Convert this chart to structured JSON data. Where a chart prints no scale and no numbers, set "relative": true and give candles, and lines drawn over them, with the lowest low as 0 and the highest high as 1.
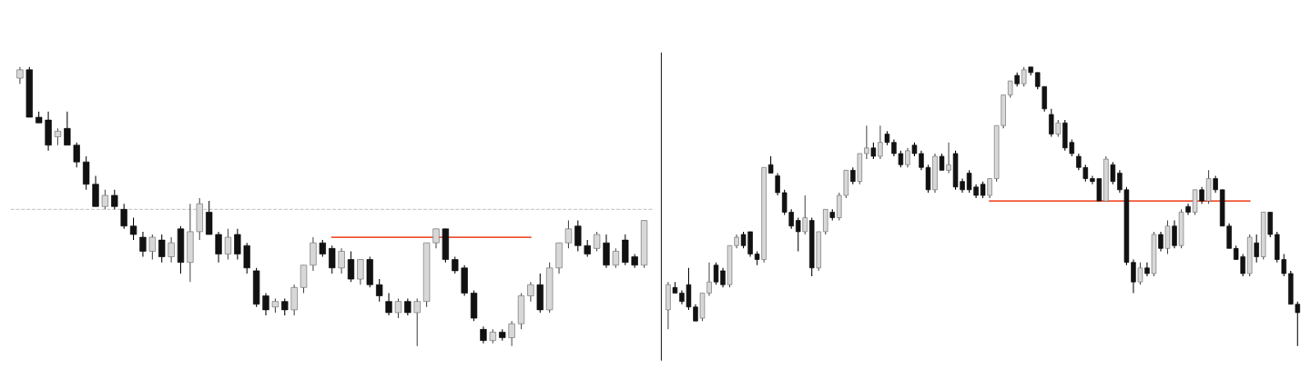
{
  "chart_data": [
    {
      "type": "candlestick",
      "relative": true,
      "tick_labels": false,
      "categories": [
        null,
        null,
        null,
        null,
        null,
        null,
        null,
        null,
        null,
        null,
        null,
        null,
        null,
        null,
        null,
        null,
        null,
        null,
        null,
        null,
        null,
        null,
        null,
        null,
        null,
        null,
        null,
        null,
        null,
        null,
        null,
        null,
        null,
        null,
        null,
        null,
        null,
        null,
        null,
        null,
        null,
        null,
        null,
        null,
        null,
        null,
        null,
        null,
        null,
        null,
        null,
        null,
        null,
        null,
        null,
        null,
        null,
        null,
        null,
        null,
        null,
        null,
        null,
        null,
        null,
        null,
        null
      ],
      "ohlc": [
        [
          0.96,
          1.0,
          0.94,
          0.99
        ],
        [
          0.99,
          1.0,
          0.82,
          0.82
        ],
        [
          0.82,
          0.84,
          0.8,
          0.8
        ],
        [
          0.81,
          0.84,
          0.7,
          0.72
        ],
        [
          0.75,
          0.78,
          0.72,
          0.77
        ],
        [
          0.78,
          0.84,
          0.72,
          0.72
        ],
        [
          0.72,
          0.73,
          0.64,
          0.66
        ],
        [
          0.66,
          0.68,
          0.56,
          0.58
        ],
        [
          0.58,
          0.61,
          0.5,
          0.5
        ],
        [
          0.5,
          0.56,
          0.49,
          0.54
        ],
        [
          0.54,
          0.56,
          0.49,
          0.5
        ],
        [
          0.49,
          0.51,
          0.42,
          0.43
        ],
        [
          0.43,
          0.46,
          0.38,
          0.4
        ],
        [
          0.39,
          0.41,
          0.32,
          0.34
        ],
        [
          0.34,
          0.4,
          0.31,
          0.39
        ],
        [
          0.38,
          0.4,
          0.3,
          0.32
        ],
        [
          0.32,
          0.39,
          0.3,
          0.37
        ],
        [
          0.42,
          0.43,
          0.26,
          0.3
        ],
        [
          0.3,
          0.51,
          0.23,
          0.41
        ],
        [
          0.41,
          0.53,
          0.38,
          0.51
        ],
        [
          0.48,
          0.52,
          0.4,
          0.4
        ],
        [
          0.4,
          0.41,
          0.3,
          0.33
        ],
        [
          0.33,
          0.42,
          0.31,
          0.39
        ],
        [
          0.4,
          0.42,
          0.31,
          0.33
        ],
        [
          0.36,
          0.37,
          0.26,
          0.28
        ],
        [
          0.27,
          0.28,
          0.14,
          0.15
        ],
        [
          0.18,
          0.19,
          0.11,
          0.13
        ],
        [
          0.14,
          0.17,
          0.12,
          0.16
        ],
        [
          0.16,
          0.17,
          0.11,
          0.13
        ],
        [
          0.13,
          0.22,
          0.11,
          0.21
        ],
        [
          0.21,
          0.29,
          0.19,
          0.29
        ],
        [
          0.29,
          0.39,
          0.27,
          0.37
        ],
        [
          0.37,
          0.38,
          0.32,
          0.33
        ],
        [
          0.35,
          0.36,
          0.26,
          0.28
        ],
        [
          0.28,
          0.35,
          0.26,
          0.34
        ],
        [
          0.31,
          0.34,
          0.23,
          0.24
        ],
        [
          0.24,
          0.31,
          0.22,
          0.31
        ],
        [
          0.31,
          0.32,
          0.21,
          0.22
        ],
        [
          0.22,
          0.24,
          0.16,
          0.18
        ],
        [
          0.16,
          0.19,
          0.11,
          0.12
        ],
        [
          0.12,
          0.17,
          0.1,
          0.16
        ],
        [
          0.16,
          0.17,
          0.11,
          0.12
        ],
        [
          0.12,
          0.17,
          0.0,
          0.16
        ],
        [
          0.16,
          0.37,
          0.14,
          0.37
        ],
        [
          0.37,
          0.42,
          0.35,
          0.42
        ],
        [
          0.42,
          0.42,
          0.3,
          0.31
        ],
        [
          0.31,
          0.32,
          0.26,
          0.27
        ],
        [
          0.28,
          0.29,
          0.18,
          0.19
        ],
        [
          0.19,
          0.2,
          0.09,
          0.1
        ],
        [
          0.06,
          0.07,
          0.01,
          0.02
        ],
        [
          0.02,
          0.06,
          0.01,
          0.05
        ],
        [
          0.05,
          0.06,
          0.02,
          0.03
        ],
        [
          0.03,
          0.09,
          0.0,
          0.08
        ],
        [
          0.08,
          0.19,
          0.06,
          0.18
        ],
        [
          0.18,
          0.23,
          0.16,
          0.22
        ],
        [
          0.22,
          0.26,
          0.12,
          0.13
        ],
        [
          0.13,
          0.3,
          0.12,
          0.28
        ],
        [
          0.28,
          0.37,
          0.26,
          0.37
        ],
        [
          0.37,
          0.45,
          0.35,
          0.42
        ],
        [
          0.43,
          0.45,
          0.34,
          0.36
        ],
        [
          0.36,
          0.38,
          0.32,
          0.33
        ],
        [
          0.35,
          0.41,
          0.34,
          0.4
        ],
        [
          0.37,
          0.4,
          0.28,
          0.29
        ],
        [
          0.29,
          0.35,
          0.28,
          0.34
        ],
        [
          0.38,
          0.4,
          0.29,
          0.3
        ],
        [
          0.32,
          0.33,
          0.28,
          0.29
        ],
        [
          0.29,
          0.45,
          0.28,
          0.45
        ]
      ],
      "colors": [
        "#d8d8d8",
        "#111111",
        "#111111",
        "#111111",
        "#d8d8d8",
        "#111111",
        "#111111",
        "#111111",
        "#111111",
        "#d8d8d8",
        "#111111",
        "#111111",
        "#111111",
        "#111111",
        "#d8d8d8",
        "#111111",
        "#d8d8d8",
        "#111111",
        "#d8d8d8",
        "#d8d8d8",
        "#111111",
        "#111111",
        "#d8d8d8",
        "#111111",
        "#111111",
        "#111111",
        "#111111",
        "#d8d8d8",
        "#111111",
        "#d8d8d8",
        "#d8d8d8",
        "#d8d8d8",
        "#111111",
        "#111111",
        "#d8d8d8",
        "#111111",
        "#d8d8d8",
        "#111111",
        "#111111",
        "#111111",
        "#d8d8d8",
        "#111111",
        "#d8d8d8",
        "#d8d8d8",
        "#d8d8d8",
        "#111111",
        "#111111",
        "#111111",
        "#111111",
        "#111111",
        "#d8d8d8",
        "#111111",
        "#d8d8d8",
        "#d8d8d8",
        "#d8d8d8",
        "#111111",
        "#d8d8d8",
        "#d8d8d8",
        "#d8d8d8",
        "#111111",
        "#111111",
        "#d8d8d8",
        "#111111",
        "#d8d8d8",
        "#111111",
        "#111111",
        "#d8d8d8"
      ],
      "series": [
        {
          "type": "line",
          "color": "#f05a3c",
          "values": [
            null,
            null,
            null,
            null,
            null,
            null,
            null,
            null,
            null,
            null,
            null,
            null,
            null,
            null,
            null,
            null,
            null,
            null,
            null,
            null,
            null,
            null,
            null,
            null,
            null,
            null,
            null,
            null,
            null,
            null,
            null,
            null,
            null,
            0.39,
            0.39,
            0.39,
            0.39,
            0.39,
            0.39,
            0.39,
            0.39,
            0.39,
            0.39,
            0.39,
            0.39,
            0.39,
            0.39,
            0.39,
            0.39,
            0.39,
            0.39,
            0.39,
            0.39,
            0.39,
            0.39,
            null,
            null,
            null,
            null,
            null,
            null,
            null,
            null,
            null,
            null,
            null,
            null
          ]
        }
      ],
      "ref_lines": [
        {
          "axis": "y",
          "value": 0.49,
          "color": "#cfcfcf",
          "line_style": "dashed"
        }
      ]
    },
    {
      "type": "candlestick",
      "relative": true,
      "tick_labels": false,
      "categories": [
        null,
        null,
        null,
        null,
        null,
        null,
        null,
        null,
        null,
        null,
        null,
        null,
        null,
        null,
        null,
        null,
        null,
        null,
        null,
        null,
        null,
        null,
        null,
        null,
        null,
        null,
        null,
        null,
        null,
        null,
        null,
        null,
        null,
        null,
        null,
        null,
        null,
        null,
        null,
        null,
        null,
        null,
        null,
        null,
        null,
        null,
        null,
        null,
        null,
        null,
        null,
        null,
        null,
        null,
        null,
        null,
        null,
        null,
        null,
        null,
        null,
        null,
        null,
        null,
        null,
        null,
        null,
        null,
        null,
        null,
        null,
        null,
        null,
        null,
        null,
        null,
        null,
        null,
        null,
        null,
        null,
        null,
        null,
        null,
        null,
        null,
        null,
        null,
        null,
        null,
        null,
        null,
        null
      ],
      "ohlc": [
        [
          0.13,
          0.23,
          0.06,
          0.22
        ],
        [
          0.21,
          0.23,
          0.19,
          0.19
        ],
        [
          0.19,
          0.2,
          0.15,
          0.16
        ],
        [
          0.22,
          0.28,
          0.13,
          0.14
        ],
        [
          0.14,
          0.15,
          0.09,
          0.09
        ],
        [
          0.1,
          0.19,
          0.09,
          0.19
        ],
        [
          0.19,
          0.3,
          0.18,
          0.23
        ],
        [
          0.29,
          0.3,
          0.22,
          0.23
        ],
        [
          0.27,
          0.28,
          0.21,
          0.22
        ],
        [
          0.22,
          0.36,
          0.21,
          0.36
        ],
        [
          0.36,
          0.4,
          0.35,
          0.39
        ],
        [
          0.4,
          0.41,
          0.35,
          0.36
        ],
        [
          0.41,
          0.41,
          0.32,
          0.33
        ],
        [
          0.33,
          0.34,
          0.29,
          0.31
        ],
        [
          0.31,
          0.64,
          0.3,
          0.64
        ],
        [
          0.65,
          0.68,
          0.62,
          0.62
        ],
        [
          0.61,
          0.62,
          0.54,
          0.55
        ],
        [
          0.55,
          0.56,
          0.47,
          0.48
        ],
        [
          0.48,
          0.49,
          0.42,
          0.43
        ],
        [
          0.45,
          0.46,
          0.34,
          0.41
        ],
        [
          0.41,
          0.54,
          0.4,
          0.46
        ],
        [
          0.45,
          0.46,
          0.25,
          0.28
        ],
        [
          0.28,
          0.41,
          0.27,
          0.41
        ],
        [
          0.41,
          0.49,
          0.4,
          0.49
        ],
        [
          0.48,
          0.49,
          0.45,
          0.46
        ],
        [
          0.46,
          0.55,
          0.45,
          0.54
        ],
        [
          0.54,
          0.63,
          0.53,
          0.63
        ],
        [
          0.63,
          0.64,
          0.58,
          0.59
        ],
        [
          0.59,
          0.69,
          0.58,
          0.69
        ],
        [
          0.69,
          0.79,
          0.67,
          0.71
        ],
        [
          0.71,
          0.73,
          0.67,
          0.68
        ],
        [
          0.68,
          0.79,
          0.67,
          0.73
        ],
        [
          0.76,
          0.77,
          0.72,
          0.73
        ],
        [
          0.73,
          0.74,
          0.68,
          0.69
        ],
        [
          0.69,
          0.7,
          0.64,
          0.65
        ],
        [
          0.65,
          0.71,
          0.64,
          0.7
        ],
        [
          0.72,
          0.73,
          0.68,
          0.69
        ],
        [
          0.69,
          0.7,
          0.63,
          0.64
        ],
        [
          0.64,
          0.65,
          0.55,
          0.56
        ],
        [
          0.56,
          0.69,
          0.55,
          0.68
        ],
        [
          0.68,
          0.69,
          0.63,
          0.63
        ],
        [
          0.63,
          0.73,
          0.62,
          0.65
        ],
        [
          0.69,
          0.7,
          0.56,
          0.57
        ],
        [
          0.59,
          0.6,
          0.55,
          0.56
        ],
        [
          0.62,
          0.63,
          0.55,
          0.56
        ],
        [
          0.57,
          0.58,
          0.53,
          0.54
        ],
        [
          0.58,
          0.59,
          0.53,
          0.54
        ],
        [
          0.54,
          0.6,
          0.53,
          0.6
        ],
        [
          0.6,
          0.79,
          0.59,
          0.79
        ],
        [
          0.79,
          0.9,
          0.78,
          0.9
        ],
        [
          0.9,
          0.95,
          0.89,
          0.95
        ],
        [
          0.97,
          0.98,
          0.93,
          0.94
        ],
        [
          0.94,
          1.0,
          0.93,
          0.99
        ],
        [
          1.0,
          1.0,
          0.97,
          0.98
        ],
        [
          0.98,
          0.98,
          0.92,
          0.93
        ],
        [
          0.93,
          0.93,
          0.84,
          0.85
        ],
        [
          0.83,
          0.85,
          0.75,
          0.76
        ],
        [
          0.76,
          0.81,
          0.75,
          0.8
        ],
        [
          0.8,
          0.81,
          0.7,
          0.71
        ],
        [
          0.73,
          0.74,
          0.68,
          0.69
        ],
        [
          0.68,
          0.69,
          0.63,
          0.64
        ],
        [
          0.64,
          0.65,
          0.59,
          0.6
        ],
        [
          0.6,
          0.61,
          0.58,
          0.59
        ],
        [
          0.6,
          0.6,
          0.52,
          0.52
        ],
        [
          0.52,
          0.68,
          0.52,
          0.67
        ],
        [
          0.65,
          0.66,
          0.58,
          0.59
        ],
        [
          0.62,
          0.63,
          0.55,
          0.56
        ],
        [
          0.56,
          0.57,
          0.29,
          0.3
        ],
        [
          0.3,
          0.31,
          0.19,
          0.23
        ],
        [
          0.23,
          0.3,
          0.22,
          0.28
        ],
        [
          0.28,
          0.3,
          0.25,
          0.26
        ],
        [
          0.26,
          0.41,
          0.25,
          0.4
        ],
        [
          0.4,
          0.41,
          0.34,
          0.35
        ],
        [
          0.35,
          0.45,
          0.33,
          0.43
        ],
        [
          0.43,
          0.45,
          0.35,
          0.36
        ],
        [
          0.36,
          0.49,
          0.35,
          0.48
        ],
        [
          0.5,
          0.51,
          0.47,
          0.48
        ],
        [
          0.48,
          0.56,
          0.47,
          0.56
        ],
        [
          0.56,
          0.57,
          0.51,
          0.52
        ],
        [
          0.52,
          0.63,
          0.51,
          0.6
        ],
        [
          0.6,
          0.61,
          0.55,
          0.56
        ],
        [
          0.56,
          0.56,
          0.43,
          0.43
        ],
        [
          0.43,
          0.44,
          0.35,
          0.35
        ],
        [
          0.35,
          0.36,
          0.31,
          0.31
        ],
        [
          0.32,
          0.33,
          0.25,
          0.26
        ],
        [
          0.26,
          0.4,
          0.25,
          0.39
        ],
        [
          0.37,
          0.4,
          0.3,
          0.32
        ],
        [
          0.32,
          0.48,
          0.31,
          0.48
        ],
        [
          0.48,
          0.48,
          0.39,
          0.4
        ],
        [
          0.4,
          0.41,
          0.3,
          0.31
        ],
        [
          0.31,
          0.33,
          0.25,
          0.26
        ],
        [
          0.26,
          0.27,
          0.15,
          0.15
        ],
        [
          0.15,
          0.16,
          0.0,
          0.12
        ]
      ],
      "colors": [
        "#d8d8d8",
        "#111111",
        "#111111",
        "#111111",
        "#111111",
        "#d8d8d8",
        "#d8d8d8",
        "#111111",
        "#111111",
        "#d8d8d8",
        "#d8d8d8",
        "#111111",
        "#111111",
        "#111111",
        "#d8d8d8",
        "#111111",
        "#111111",
        "#111111",
        "#111111",
        "#111111",
        "#d8d8d8",
        "#111111",
        "#d8d8d8",
        "#d8d8d8",
        "#111111",
        "#d8d8d8",
        "#d8d8d8",
        "#111111",
        "#d8d8d8",
        "#d8d8d8",
        "#111111",
        "#d8d8d8",
        "#111111",
        "#111111",
        "#111111",
        "#d8d8d8",
        "#111111",
        "#111111",
        "#111111",
        "#d8d8d8",
        "#111111",
        "#d8d8d8",
        "#111111",
        "#111111",
        "#111111",
        "#111111",
        "#111111",
        "#d8d8d8",
        "#d8d8d8",
        "#d8d8d8",
        "#d8d8d8",
        "#111111",
        "#d8d8d8",
        "#111111",
        "#111111",
        "#111111",
        "#111111",
        "#d8d8d8",
        "#111111",
        "#111111",
        "#111111",
        "#111111",
        "#111111",
        "#111111",
        "#d8d8d8",
        "#111111",
        "#111111",
        "#111111",
        "#111111",
        "#d8d8d8",
        "#111111",
        "#d8d8d8",
        "#111111",
        "#d8d8d8",
        "#111111",
        "#d8d8d8",
        "#111111",
        "#d8d8d8",
        "#111111",
        "#d8d8d8",
        "#111111",
        "#111111",
        "#111111",
        "#111111",
        "#111111",
        "#d8d8d8",
        "#111111",
        "#d8d8d8",
        "#111111",
        "#111111",
        "#111111",
        "#111111",
        "#111111"
      ],
      "series": [
        {
          "type": "line",
          "color": "#f05a3c",
          "values": [
            null,
            null,
            null,
            null,
            null,
            null,
            null,
            null,
            null,
            null,
            null,
            null,
            null,
            null,
            null,
            null,
            null,
            null,
            null,
            null,
            null,
            null,
            null,
            null,
            null,
            null,
            null,
            null,
            null,
            null,
            null,
            null,
            null,
            null,
            null,
            null,
            null,
            null,
            null,
            null,
            null,
            null,
            null,
            null,
            null,
            null,
            null,
            0.52,
            0.52,
            0.52,
            0.52,
            0.52,
            0.52,
            0.52,
            0.52,
            0.52,
            0.52,
            0.52,
            0.52,
            0.52,
            0.52,
            0.52,
            0.52,
            0.52,
            0.52,
            0.52,
            0.52,
            0.52,
            0.52,
            0.52,
            0.52,
            0.52,
            0.52,
            0.52,
            0.52,
            0.52,
            0.52,
            0.52,
            0.52,
            0.52,
            0.52,
            0.52,
            0.52,
            0.52,
            0.52,
            0.52,
            null,
            null,
            null,
            null,
            null,
            null,
            null
          ]
        }
      ]
    }
  ]
}
